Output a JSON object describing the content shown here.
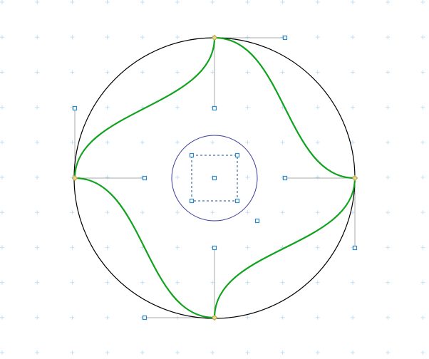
{
  "canvas": {
    "background": "#ffffff",
    "grid_color": "#c5dff0",
    "grid": true
  },
  "colors": {
    "outer_circle": "#000000",
    "inner_circle": "#3b3b9e",
    "curve": "#11a21f",
    "handle_line": "#a8a8a8",
    "anchor_fill": "#e8d88a",
    "anchor_stroke": "#b8a040",
    "control_fill": "#ffffff",
    "control_stroke": "#2f87c5",
    "selection_box": "#1a4c8a"
  },
  "shapes": [
    {
      "name": "outer-circle",
      "kind": "circle",
      "role": "boundary"
    },
    {
      "name": "inner-circle",
      "kind": "circle",
      "role": "center"
    },
    {
      "name": "green-star-curve",
      "kind": "bezier-path",
      "role": "four-pointed star"
    },
    {
      "name": "selection-box",
      "kind": "dashed-rectangle",
      "role": "selection"
    }
  ],
  "icons": {
    "anchor": "diamond-anchor-icon",
    "control": "square-control-handle-icon"
  }
}
